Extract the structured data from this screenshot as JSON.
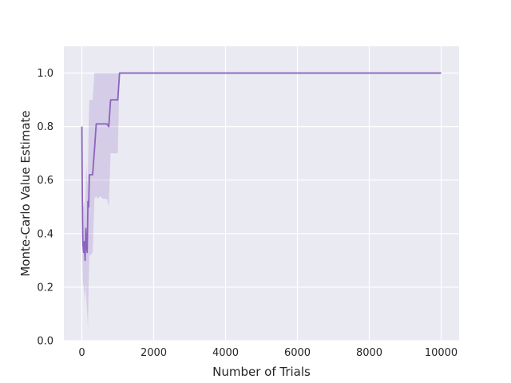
{
  "chart_data": {
    "type": "line",
    "title": "",
    "xlabel": "Number of Trials",
    "ylabel": "Monte-Carlo Value Estimate",
    "xlim": [
      -500,
      10500
    ],
    "ylim": [
      0.0,
      1.1
    ],
    "xticks": [
      0,
      2000,
      4000,
      6000,
      8000,
      10000
    ],
    "xtick_labels": [
      "0",
      "2000",
      "4000",
      "6000",
      "8000",
      "10000"
    ],
    "yticks": [
      0.0,
      0.2,
      0.4,
      0.6,
      0.8,
      1.0
    ],
    "ytick_labels": [
      "0.0",
      "0.2",
      "0.4",
      "0.6",
      "0.8",
      "1.0"
    ],
    "grid": true,
    "legend": "none",
    "series": [
      {
        "color": "#8c63be",
        "band_color": "#8c63be",
        "x": [
          1,
          10,
          20,
          30,
          50,
          70,
          90,
          110,
          130,
          150,
          170,
          190,
          210,
          250,
          300,
          350,
          400,
          450,
          500,
          600,
          700,
          750,
          800,
          900,
          1000,
          1050,
          2000,
          4000,
          6000,
          8000,
          10000
        ],
        "y": [
          0.8,
          0.6,
          0.45,
          0.36,
          0.33,
          0.37,
          0.3,
          0.42,
          0.35,
          0.33,
          0.52,
          0.5,
          0.62,
          0.62,
          0.62,
          0.71,
          0.81,
          0.81,
          0.81,
          0.81,
          0.81,
          0.8,
          0.9,
          0.9,
          0.9,
          1.0,
          1.0,
          1.0,
          1.0,
          1.0,
          1.0
        ],
        "lower": [
          0.8,
          0.4,
          0.27,
          0.22,
          0.2,
          0.18,
          0.15,
          0.22,
          0.14,
          0.1,
          0.05,
          0.22,
          0.32,
          0.32,
          0.33,
          0.53,
          0.54,
          0.53,
          0.54,
          0.53,
          0.53,
          0.5,
          0.7,
          0.7,
          0.7,
          1.0,
          1.0,
          1.0,
          1.0,
          1.0,
          1.0
        ],
        "upper": [
          0.8,
          0.7,
          0.6,
          0.52,
          0.5,
          0.52,
          0.46,
          0.6,
          0.66,
          0.58,
          0.62,
          0.8,
          0.9,
          0.9,
          0.9,
          1.0,
          1.0,
          1.0,
          1.0,
          1.0,
          1.0,
          1.0,
          1.0,
          1.0,
          1.0,
          1.0,
          1.0,
          1.0,
          1.0,
          1.0,
          1.0
        ]
      }
    ]
  }
}
